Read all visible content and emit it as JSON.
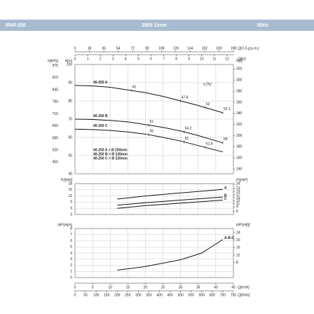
{
  "header": {
    "model": "IR40-250",
    "speed": "2900 1/min",
    "frequency": "50Hz"
  },
  "flow_axes": {
    "q_usgpm": {
      "label": "Q[U.S.g.p.m.]",
      "lim": [
        0,
        198
      ],
      "ticks": [
        0,
        18,
        36,
        54,
        72,
        90,
        108,
        126,
        144,
        162,
        180,
        198
      ]
    },
    "q_ls": {
      "label": "Q[l/s]",
      "lim": [
        0,
        12.5
      ],
      "ticks": [
        0,
        1,
        2,
        3,
        4,
        5,
        6,
        7,
        8,
        9,
        10,
        11,
        12
      ]
    },
    "q_m3h": {
      "label": "Q[m³/h]",
      "lim": [
        0,
        45
      ],
      "ticks": [
        0,
        5,
        10,
        15,
        20,
        25,
        30,
        35,
        40,
        45
      ]
    },
    "q_lmin": {
      "label": "Q[l/min]",
      "lim": [
        0,
        750
      ],
      "ticks": [
        0,
        50,
        100,
        150,
        200,
        250,
        300,
        350,
        400,
        450,
        500,
        550,
        600,
        650,
        700,
        750
      ]
    }
  },
  "chart_data": [
    {
      "type": "line",
      "ylabel": "H[m]",
      "ylim": [
        40,
        100
      ],
      "yticks": [
        40,
        50,
        60,
        70,
        80,
        90,
        100
      ],
      "y2label": "H[ft]",
      "y2lim": [
        131.2,
        328.1
      ],
      "y2ticks": [
        140,
        160,
        180,
        200,
        220,
        240,
        260,
        280,
        300,
        320
      ],
      "y3label": "H[kPa]",
      "y3lim": [
        392.4,
        981
      ],
      "y3ticks": [
        455,
        520,
        585,
        650,
        715,
        780,
        845,
        910,
        975
      ],
      "grid": true,
      "efficiency_label": "η [%]",
      "notes": [
        "40-250 A = Ø 254mm",
        "40-250 B = Ø 230mm",
        "40-250 C = Ø 220mm"
      ],
      "x": [
        0,
        5,
        10,
        15,
        20,
        25,
        30,
        35,
        42
      ],
      "series": [
        {
          "name": "40-250 A",
          "color": "#111111",
          "values": [
            88.5,
            88.2,
            87.5,
            86,
            84.5,
            82.5,
            80,
            77.5,
            73.5
          ],
          "efficiency": {
            "x": [
              16,
              30,
              37,
              42
            ],
            "values": [
              43,
              47.8,
              52,
              52.1
            ]
          }
        },
        {
          "name": "40-250 B",
          "color": "#111111",
          "values": [
            70,
            69.8,
            69.3,
            68.5,
            67,
            65.5,
            63.5,
            61,
            57
          ],
          "efficiency": {
            "x": [
              21,
              31,
              42
            ],
            "values": [
              51,
              54.2,
              58
            ]
          }
        },
        {
          "name": "40-250 C",
          "color": "#111111",
          "values": [
            64.5,
            64.3,
            63.8,
            63,
            61.8,
            60,
            58,
            55.5,
            52
          ],
          "efficiency": {
            "x": [
              21,
              31,
              37
            ],
            "values": [
              56,
              61,
              61.8
            ]
          }
        }
      ]
    },
    {
      "type": "line",
      "ylabel": "P2[kW]",
      "ylim": [
        3,
        18
      ],
      "yticks": [
        3,
        6,
        9,
        12,
        15,
        18
      ],
      "y2label": "P2[HP]",
      "y2lim": [
        4.02,
        24.14
      ],
      "y2ticks": [
        6,
        9,
        11,
        13,
        15,
        17,
        19,
        21,
        24
      ],
      "grid": true,
      "x": [
        12,
        20,
        30,
        42
      ],
      "series": [
        {
          "name": "A",
          "color": "#111111",
          "values": [
            10.5,
            12,
            13.5,
            15.2
          ]
        },
        {
          "name": "B",
          "color": "#111111",
          "values": [
            7.5,
            8.7,
            10,
            11.5
          ]
        },
        {
          "name": "C",
          "color": "#111111",
          "values": [
            6,
            7.3,
            8.5,
            10
          ]
        }
      ]
    },
    {
      "type": "line",
      "ylabel": "NPSH[m]",
      "ylim": [
        0,
        8
      ],
      "yticks": [
        0,
        1,
        2,
        3,
        4,
        5,
        6,
        7,
        8
      ],
      "y2label": "NPSH[ft]",
      "y2lim": [
        0,
        26.25
      ],
      "y2ticks": [
        8,
        12,
        16,
        20,
        24
      ],
      "grid": true,
      "x": [
        12,
        20,
        30,
        36,
        42
      ],
      "series": [
        {
          "name": "A-B-C",
          "color": "#111111",
          "values": [
            1.2,
            1.8,
            2.9,
            4,
            6.2
          ]
        }
      ]
    }
  ]
}
